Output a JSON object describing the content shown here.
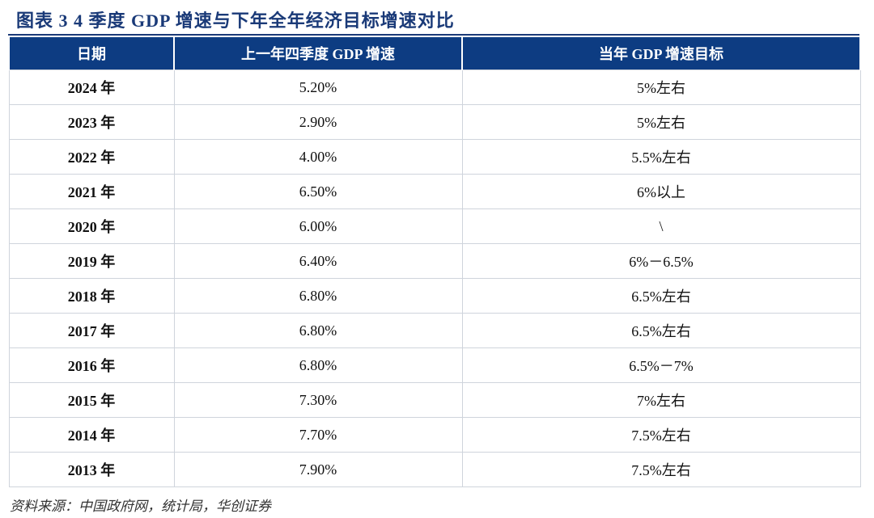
{
  "figure": {
    "title": "图表 3   4 季度 GDP 增速与下年全年经济目标增速对比"
  },
  "table": {
    "headers": [
      "日期",
      "上一年四季度 GDP 增速",
      "当年 GDP 增速目标"
    ],
    "rows": [
      {
        "date": "2024 年",
        "q4_growth": "5.20%",
        "target": "5%左右"
      },
      {
        "date": "2023 年",
        "q4_growth": "2.90%",
        "target": "5%左右"
      },
      {
        "date": "2022 年",
        "q4_growth": "4.00%",
        "target": "5.5%左右"
      },
      {
        "date": "2021 年",
        "q4_growth": "6.50%",
        "target": "6%以上"
      },
      {
        "date": "2020 年",
        "q4_growth": "6.00%",
        "target": "\\"
      },
      {
        "date": "2019 年",
        "q4_growth": "6.40%",
        "target": "6%－6.5%"
      },
      {
        "date": "2018 年",
        "q4_growth": "6.80%",
        "target": "6.5%左右"
      },
      {
        "date": "2017 年",
        "q4_growth": "6.80%",
        "target": "6.5%左右"
      },
      {
        "date": "2016 年",
        "q4_growth": "6.80%",
        "target": "6.5%－7%"
      },
      {
        "date": "2015 年",
        "q4_growth": "7.30%",
        "target": "7%左右"
      },
      {
        "date": "2014 年",
        "q4_growth": "7.70%",
        "target": "7.5%左右"
      },
      {
        "date": "2013 年",
        "q4_growth": "7.90%",
        "target": "7.5%左右"
      }
    ]
  },
  "source": "资料来源：中国政府网，统计局，华创证券",
  "colors": {
    "header_bg": "#0d3c82",
    "title_text": "#1a3a78",
    "border": "#cfd4dc"
  }
}
